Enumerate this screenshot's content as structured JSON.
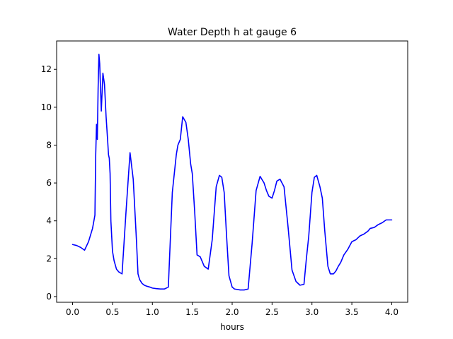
{
  "chart_data": {
    "type": "line",
    "title": "Water Depth h at gauge 6",
    "xlabel": "hours",
    "ylabel": "",
    "xlim": [
      -0.2,
      4.2
    ],
    "ylim": [
      -0.3,
      13.5
    ],
    "xticks": [
      0.0,
      0.5,
      1.0,
      1.5,
      2.0,
      2.5,
      3.0,
      3.5,
      4.0
    ],
    "xtick_labels": [
      "0.0",
      "0.5",
      "1.0",
      "1.5",
      "2.0",
      "2.5",
      "3.0",
      "3.5",
      "4.0"
    ],
    "yticks": [
      0,
      2,
      4,
      6,
      8,
      10,
      12
    ],
    "ytick_labels": [
      "0",
      "2",
      "4",
      "6",
      "8",
      "10",
      "12"
    ],
    "grid": false,
    "series": [
      {
        "color": "#0000ff",
        "x": [
          0.0,
          0.05,
          0.1,
          0.15,
          0.2,
          0.25,
          0.28,
          0.29,
          0.3,
          0.31,
          0.32,
          0.33,
          0.34,
          0.35,
          0.36,
          0.38,
          0.4,
          0.42,
          0.44,
          0.45,
          0.46,
          0.47,
          0.48,
          0.5,
          0.52,
          0.55,
          0.58,
          0.62,
          0.67,
          0.72,
          0.76,
          0.8,
          0.82,
          0.84,
          0.87,
          0.9,
          0.93,
          0.97,
          1.0,
          1.05,
          1.1,
          1.15,
          1.2,
          1.25,
          1.3,
          1.32,
          1.35,
          1.38,
          1.42,
          1.45,
          1.48,
          1.5,
          1.53,
          1.56,
          1.6,
          1.65,
          1.7,
          1.75,
          1.8,
          1.84,
          1.87,
          1.9,
          1.93,
          1.96,
          2.0,
          2.03,
          2.06,
          2.1,
          2.15,
          2.2,
          2.25,
          2.3,
          2.35,
          2.4,
          2.43,
          2.46,
          2.5,
          2.53,
          2.56,
          2.6,
          2.65,
          2.7,
          2.75,
          2.8,
          2.85,
          2.9,
          2.93,
          2.96,
          3.0,
          3.03,
          3.06,
          3.1,
          3.13,
          3.16,
          3.2,
          3.23,
          3.27,
          3.3,
          3.33,
          3.36,
          3.4,
          3.45,
          3.5,
          3.55,
          3.6,
          3.65,
          3.7,
          3.73,
          3.78,
          3.83,
          3.88,
          3.93,
          3.97,
          4.0
        ],
        "y": [
          2.75,
          2.7,
          2.6,
          2.45,
          2.9,
          3.6,
          4.3,
          7.5,
          9.1,
          8.3,
          11.0,
          12.8,
          12.3,
          11.0,
          9.8,
          11.8,
          11.2,
          9.5,
          8.2,
          7.5,
          7.3,
          6.5,
          4.0,
          2.4,
          1.9,
          1.45,
          1.3,
          1.2,
          4.5,
          7.6,
          6.2,
          3.0,
          1.2,
          0.9,
          0.7,
          0.6,
          0.55,
          0.5,
          0.45,
          0.42,
          0.4,
          0.4,
          0.5,
          5.5,
          7.5,
          8.0,
          8.3,
          9.5,
          9.2,
          8.3,
          7.0,
          6.5,
          4.5,
          2.2,
          2.1,
          1.6,
          1.45,
          3.0,
          5.8,
          6.4,
          6.3,
          5.5,
          3.2,
          1.1,
          0.5,
          0.4,
          0.38,
          0.35,
          0.35,
          0.4,
          2.8,
          5.6,
          6.35,
          6.0,
          5.6,
          5.3,
          5.2,
          5.6,
          6.1,
          6.2,
          5.8,
          3.7,
          1.4,
          0.8,
          0.6,
          0.65,
          2.0,
          3.2,
          5.5,
          6.3,
          6.4,
          5.8,
          5.2,
          3.5,
          1.6,
          1.2,
          1.2,
          1.35,
          1.6,
          1.8,
          2.2,
          2.5,
          2.9,
          3.0,
          3.2,
          3.3,
          3.45,
          3.6,
          3.65,
          3.8,
          3.9,
          4.05,
          4.05,
          4.05
        ]
      }
    ]
  }
}
